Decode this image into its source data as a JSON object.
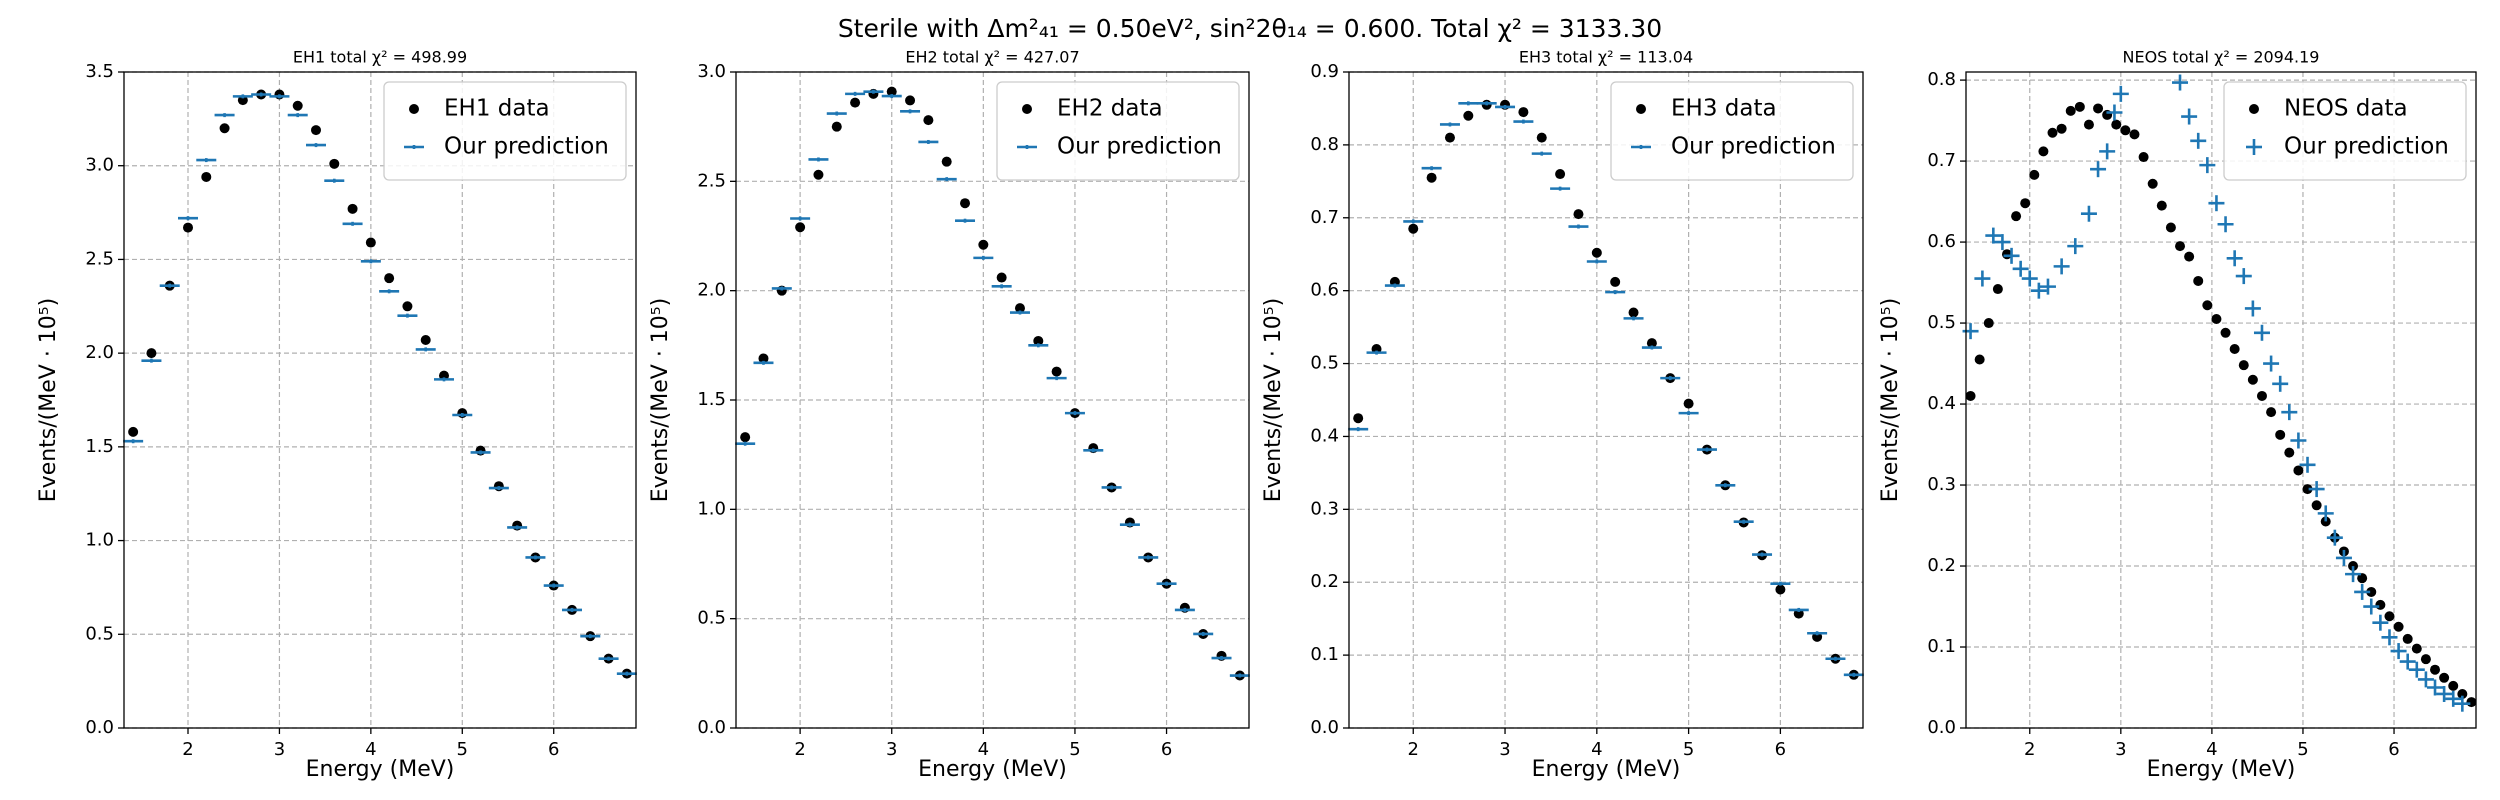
{
  "title": "Sterile with Δm²₄₁ = 0.50eV², sin²2θ₁₄ = 0.600. Total χ² = 3133.30",
  "chart_data": [
    {
      "type": "scatter",
      "title": "EH1 total χ² = 498.99",
      "xlabel": "Energy (MeV)",
      "ylabel": "Events/(MeV · 10⁵)",
      "xlim": [
        1.3,
        6.9
      ],
      "xticks": [
        2,
        3,
        4,
        5,
        6
      ],
      "ylim": [
        0,
        3.5
      ],
      "yticks": [
        {
          "value": 0,
          "label": "0.0"
        },
        0.5,
        {
          "value": 1,
          "label": "1.0"
        },
        1.5,
        {
          "value": 2,
          "label": "2.0"
        },
        2.5,
        {
          "value": 3,
          "label": "3.0"
        },
        3.5
      ],
      "grid": true,
      "legend": "upper right",
      "series": [
        {
          "name": "EH1 data",
          "color": "#000000",
          "marker": "dot",
          "x": [
            1.4,
            1.6,
            1.8,
            2.0,
            2.2,
            2.4,
            2.6,
            2.8,
            3.0,
            3.2,
            3.4,
            3.6,
            3.8,
            4.0,
            4.2,
            4.4,
            4.6,
            4.8,
            5.0,
            5.2,
            5.4,
            5.6,
            5.8,
            6.0,
            6.2,
            6.4,
            6.6,
            6.8
          ],
          "values": [
            1.58,
            2.0,
            2.36,
            2.67,
            2.94,
            3.2,
            3.35,
            3.38,
            3.38,
            3.32,
            3.19,
            3.01,
            2.77,
            2.59,
            2.4,
            2.25,
            2.07,
            1.88,
            1.68,
            1.48,
            1.29,
            1.08,
            0.91,
            0.76,
            0.63,
            0.49,
            0.37,
            0.29
          ]
        },
        {
          "name": "Our prediction",
          "color": "#1f77b4",
          "marker": "cross",
          "x": [
            1.4,
            1.6,
            1.8,
            2.0,
            2.2,
            2.4,
            2.6,
            2.8,
            3.0,
            3.2,
            3.4,
            3.6,
            3.8,
            4.0,
            4.2,
            4.4,
            4.6,
            4.8,
            5.0,
            5.2,
            5.4,
            5.6,
            5.8,
            6.0,
            6.2,
            6.4,
            6.6,
            6.8
          ],
          "values": [
            1.53,
            1.96,
            2.36,
            2.72,
            3.03,
            3.27,
            3.37,
            3.38,
            3.37,
            3.27,
            3.11,
            2.92,
            2.69,
            2.49,
            2.33,
            2.2,
            2.02,
            1.86,
            1.67,
            1.47,
            1.28,
            1.07,
            0.91,
            0.76,
            0.63,
            0.49,
            0.37,
            0.29
          ]
        }
      ]
    },
    {
      "type": "scatter",
      "title": "EH2 total χ² = 427.07",
      "xlabel": "Energy (MeV)",
      "ylabel": "Events/(MeV · 10⁵)",
      "xlim": [
        1.3,
        6.9
      ],
      "xticks": [
        2,
        3,
        4,
        5,
        6
      ],
      "ylim": [
        0,
        3.0
      ],
      "yticks": [
        {
          "value": 0,
          "label": "0.0"
        },
        0.5,
        {
          "value": 1,
          "label": "1.0"
        },
        1.5,
        {
          "value": 2,
          "label": "2.0"
        },
        2.5,
        {
          "value": 3,
          "label": "3.0"
        }
      ],
      "grid": true,
      "legend": "upper right",
      "series": [
        {
          "name": "EH2 data",
          "color": "#000000",
          "marker": "dot",
          "x": [
            1.4,
            1.6,
            1.8,
            2.0,
            2.2,
            2.4,
            2.6,
            2.8,
            3.0,
            3.2,
            3.4,
            3.6,
            3.8,
            4.0,
            4.2,
            4.4,
            4.6,
            4.8,
            5.0,
            5.2,
            5.4,
            5.6,
            5.8,
            6.0,
            6.2,
            6.4,
            6.6,
            6.8
          ],
          "values": [
            1.33,
            1.69,
            2.0,
            2.29,
            2.53,
            2.75,
            2.86,
            2.9,
            2.91,
            2.87,
            2.78,
            2.59,
            2.4,
            2.21,
            2.06,
            1.92,
            1.77,
            1.63,
            1.44,
            1.28,
            1.1,
            0.94,
            0.78,
            0.66,
            0.55,
            0.43,
            0.33,
            0.24
          ]
        },
        {
          "name": "Our prediction",
          "color": "#1f77b4",
          "marker": "cross",
          "x": [
            1.4,
            1.6,
            1.8,
            2.0,
            2.2,
            2.4,
            2.6,
            2.8,
            3.0,
            3.2,
            3.4,
            3.6,
            3.8,
            4.0,
            4.2,
            4.4,
            4.6,
            4.8,
            5.0,
            5.2,
            5.4,
            5.6,
            5.8,
            6.0,
            6.2,
            6.4,
            6.6,
            6.8
          ],
          "values": [
            1.3,
            1.67,
            2.01,
            2.33,
            2.6,
            2.81,
            2.9,
            2.91,
            2.89,
            2.82,
            2.68,
            2.51,
            2.32,
            2.15,
            2.02,
            1.9,
            1.75,
            1.6,
            1.44,
            1.27,
            1.1,
            0.93,
            0.78,
            0.66,
            0.54,
            0.43,
            0.32,
            0.24
          ]
        }
      ]
    },
    {
      "type": "scatter",
      "title": "EH3 total χ² = 113.04",
      "xlabel": "Energy (MeV)",
      "ylabel": "Events/(MeV · 10⁵)",
      "xlim": [
        1.3,
        6.9
      ],
      "xticks": [
        2,
        3,
        4,
        5,
        6
      ],
      "ylim": [
        0,
        0.9
      ],
      "yticks": [
        {
          "value": 0,
          "label": "0.0"
        },
        0.1,
        0.2,
        0.3,
        0.4,
        0.5,
        0.6,
        0.7,
        0.8,
        0.9
      ],
      "grid": true,
      "legend": "upper right",
      "series": [
        {
          "name": "EH3 data",
          "color": "#000000",
          "marker": "dot",
          "x": [
            1.4,
            1.6,
            1.8,
            2.0,
            2.2,
            2.4,
            2.6,
            2.8,
            3.0,
            3.2,
            3.4,
            3.6,
            3.8,
            4.0,
            4.2,
            4.4,
            4.6,
            4.8,
            5.0,
            5.2,
            5.4,
            5.6,
            5.8,
            6.0,
            6.2,
            6.4,
            6.6,
            6.8
          ],
          "values": [
            0.425,
            0.52,
            0.612,
            0.685,
            0.755,
            0.81,
            0.84,
            0.855,
            0.855,
            0.845,
            0.81,
            0.76,
            0.705,
            0.652,
            0.612,
            0.57,
            0.528,
            0.48,
            0.445,
            0.382,
            0.333,
            0.282,
            0.237,
            0.19,
            0.157,
            0.125,
            0.095,
            0.073
          ]
        },
        {
          "name": "Our prediction",
          "color": "#1f77b4",
          "marker": "cross",
          "x": [
            1.4,
            1.6,
            1.8,
            2.0,
            2.2,
            2.4,
            2.6,
            2.8,
            3.0,
            3.2,
            3.4,
            3.6,
            3.8,
            4.0,
            4.2,
            4.4,
            4.6,
            4.8,
            5.0,
            5.2,
            5.4,
            5.6,
            5.8,
            6.0,
            6.2,
            6.4,
            6.6,
            6.8
          ],
          "values": [
            0.41,
            0.515,
            0.607,
            0.695,
            0.768,
            0.828,
            0.857,
            0.857,
            0.852,
            0.832,
            0.788,
            0.74,
            0.688,
            0.64,
            0.598,
            0.562,
            0.522,
            0.48,
            0.432,
            0.382,
            0.333,
            0.283,
            0.238,
            0.198,
            0.162,
            0.13,
            0.095,
            0.073
          ]
        }
      ]
    },
    {
      "type": "scatter",
      "title": "NEOS total χ² = 2094.19",
      "xlabel": "Energy (MeV)",
      "ylabel": "Events/(MeV · 10⁵)",
      "xlim": [
        1.3,
        6.9
      ],
      "xticks": [
        2,
        3,
        4,
        5,
        6
      ],
      "ylim": [
        0,
        0.81
      ],
      "yticks": [
        {
          "value": 0,
          "label": "0.0"
        },
        0.1,
        0.2,
        0.3,
        0.4,
        0.5,
        0.6,
        0.7,
        0.8
      ],
      "grid": true,
      "legend": "upper right",
      "series": [
        {
          "name": "NEOS data",
          "color": "#000000",
          "marker": "dot",
          "x": [
            1.35,
            1.45,
            1.55,
            1.65,
            1.75,
            1.85,
            1.95,
            2.05,
            2.15,
            2.25,
            2.35,
            2.45,
            2.55,
            2.65,
            2.75,
            2.85,
            2.95,
            3.05,
            3.15,
            3.25,
            3.35,
            3.45,
            3.55,
            3.65,
            3.75,
            3.85,
            3.95,
            4.05,
            4.15,
            4.25,
            4.35,
            4.45,
            4.55,
            4.65,
            4.75,
            4.85,
            4.95,
            5.05,
            5.15,
            5.25,
            5.35,
            5.45,
            5.55,
            5.65,
            5.75,
            5.85,
            5.95,
            6.05,
            6.15,
            6.25,
            6.35,
            6.45,
            6.55,
            6.65,
            6.75,
            6.85
          ],
          "values": [
            0.41,
            0.455,
            0.5,
            0.542,
            0.585,
            0.632,
            0.648,
            0.683,
            0.712,
            0.735,
            0.74,
            0.762,
            0.767,
            0.745,
            0.765,
            0.757,
            0.745,
            0.738,
            0.733,
            0.705,
            0.672,
            0.645,
            0.618,
            0.595,
            0.582,
            0.552,
            0.522,
            0.505,
            0.488,
            0.468,
            0.448,
            0.43,
            0.41,
            0.39,
            0.362,
            0.34,
            0.318,
            0.295,
            0.275,
            0.255,
            0.235,
            0.218,
            0.2,
            0.185,
            0.168,
            0.152,
            0.138,
            0.125,
            0.11,
            0.098,
            0.085,
            0.072,
            0.062,
            0.052,
            0.042,
            0.032
          ]
        },
        {
          "name": "Our prediction",
          "color": "#1f77b4",
          "marker": "cross",
          "x": [
            1.35,
            1.48,
            1.6,
            1.7,
            1.8,
            1.9,
            2.0,
            2.1,
            2.2,
            2.35,
            2.5,
            2.65,
            2.75,
            2.85,
            2.93,
            3.0,
            3.65,
            3.75,
            3.85,
            3.95,
            4.05,
            4.15,
            4.25,
            4.35,
            4.45,
            4.55,
            4.65,
            4.75,
            4.85,
            4.95,
            5.05,
            5.15,
            5.25,
            5.35,
            5.45,
            5.55,
            5.65,
            5.75,
            5.85,
            5.95,
            6.05,
            6.15,
            6.25,
            6.35,
            6.45,
            6.55,
            6.65,
            6.75
          ],
          "values": [
            0.49,
            0.555,
            0.608,
            0.6,
            0.583,
            0.567,
            0.555,
            0.54,
            0.545,
            0.57,
            0.595,
            0.635,
            0.69,
            0.712,
            0.76,
            0.783,
            0.797,
            0.755,
            0.725,
            0.695,
            0.648,
            0.622,
            0.58,
            0.558,
            0.518,
            0.488,
            0.45,
            0.425,
            0.39,
            0.355,
            0.325,
            0.295,
            0.265,
            0.235,
            0.21,
            0.19,
            0.168,
            0.15,
            0.13,
            0.112,
            0.095,
            0.082,
            0.072,
            0.06,
            0.05,
            0.042,
            0.036,
            0.03
          ]
        }
      ]
    }
  ]
}
